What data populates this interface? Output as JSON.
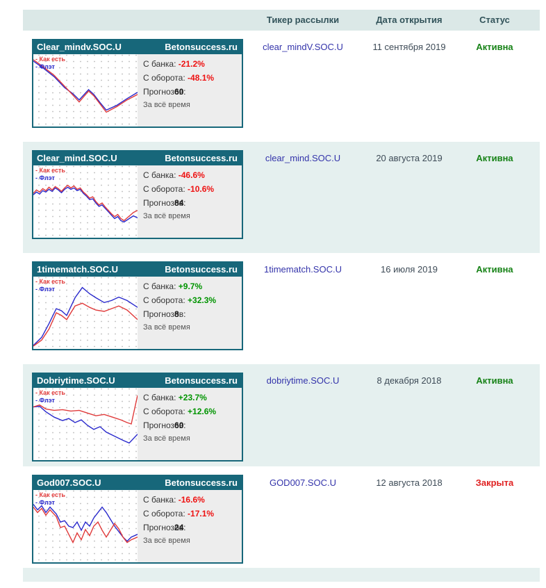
{
  "table_header": {
    "ticker_label": "Тикер рассылки",
    "date_label": "Дата открытия",
    "status_label": "Статус"
  },
  "card_labels": {
    "brand": "Betonsuccess.ru",
    "bank_label": "С банка:",
    "turnover_label": "С оборота:",
    "forecast_prefix": "Прогноз",
    "forecast_suffix": "ов:",
    "alltime_label": "За всё время",
    "legend_asis": "- Как есть",
    "legend_flat": "- Флэт"
  },
  "colors": {
    "card_teal": "#17677a",
    "header_band_bg": "#dbe8e7",
    "alt_row_bg": "#e5f0ef",
    "stats_bg": "#ededed",
    "negative_value": "#ee1111",
    "positive_value": "#009400",
    "ticker_link": "#3333aa",
    "date_text": "#3d4a56",
    "status_active": "#168216",
    "status_closed": "#e02222",
    "line_asis": "#e03a3a",
    "line_flat": "#2929cc"
  },
  "rows": [
    {
      "card_title": "Clear_mindv.SOC.U",
      "bank_value": "-21.2%",
      "bank_sign": "neg",
      "turnover_value": "-48.1%",
      "turnover_sign": "neg",
      "forecast_count": "60",
      "ticker": "clear_mindV.SOC.U",
      "date": "11 сентября 2019",
      "status": "Активна",
      "status_kind": "active",
      "alt": false,
      "chart": {
        "asis": [
          [
            0,
            5
          ],
          [
            10,
            16
          ],
          [
            20,
            28
          ],
          [
            30,
            44
          ],
          [
            38,
            57
          ],
          [
            44,
            67
          ],
          [
            53,
            51
          ],
          [
            58,
            58
          ],
          [
            64,
            70
          ],
          [
            70,
            82
          ],
          [
            80,
            74
          ],
          [
            90,
            64
          ],
          [
            100,
            56
          ]
        ],
        "flat": [
          [
            0,
            7
          ],
          [
            10,
            18
          ],
          [
            20,
            30
          ],
          [
            30,
            46
          ],
          [
            38,
            55
          ],
          [
            44,
            64
          ],
          [
            53,
            49
          ],
          [
            58,
            56
          ],
          [
            64,
            68
          ],
          [
            70,
            79
          ],
          [
            80,
            72
          ],
          [
            90,
            62
          ],
          [
            100,
            53
          ]
        ]
      }
    },
    {
      "card_title": "Clear_mind.SOC.U",
      "bank_value": "-46.6%",
      "bank_sign": "neg",
      "turnover_value": "-10.6%",
      "turnover_sign": "neg",
      "forecast_count": "84",
      "ticker": "clear_mind.SOC.U",
      "date": "20 августа 2019",
      "status": "Активна",
      "status_kind": "active",
      "alt": true,
      "chart": {
        "asis": [
          [
            0,
            38
          ],
          [
            3,
            33
          ],
          [
            6,
            36
          ],
          [
            9,
            31
          ],
          [
            12,
            34
          ],
          [
            15,
            29
          ],
          [
            18,
            33
          ],
          [
            21,
            28
          ],
          [
            24,
            31
          ],
          [
            27,
            35
          ],
          [
            30,
            30
          ],
          [
            33,
            26
          ],
          [
            36,
            30
          ],
          [
            39,
            27
          ],
          [
            42,
            32
          ],
          [
            45,
            30
          ],
          [
            48,
            36
          ],
          [
            51,
            40
          ],
          [
            54,
            45
          ],
          [
            57,
            43
          ],
          [
            60,
            50
          ],
          [
            63,
            55
          ],
          [
            66,
            52
          ],
          [
            69,
            58
          ],
          [
            72,
            63
          ],
          [
            75,
            68
          ],
          [
            78,
            72
          ],
          [
            81,
            69
          ],
          [
            84,
            75
          ],
          [
            87,
            78
          ],
          [
            90,
            74
          ],
          [
            93,
            70
          ],
          [
            96,
            66
          ],
          [
            100,
            63
          ]
        ],
        "flat": [
          [
            0,
            40
          ],
          [
            3,
            36
          ],
          [
            6,
            39
          ],
          [
            9,
            34
          ],
          [
            12,
            36
          ],
          [
            15,
            32
          ],
          [
            18,
            35
          ],
          [
            21,
            30
          ],
          [
            24,
            33
          ],
          [
            27,
            37
          ],
          [
            30,
            32
          ],
          [
            33,
            29
          ],
          [
            36,
            32
          ],
          [
            39,
            30
          ],
          [
            42,
            34
          ],
          [
            45,
            32
          ],
          [
            48,
            38
          ],
          [
            51,
            42
          ],
          [
            54,
            47
          ],
          [
            57,
            46
          ],
          [
            60,
            52
          ],
          [
            63,
            57
          ],
          [
            66,
            55
          ],
          [
            69,
            60
          ],
          [
            72,
            65
          ],
          [
            75,
            70
          ],
          [
            78,
            75
          ],
          [
            81,
            72
          ],
          [
            84,
            78
          ],
          [
            87,
            80
          ],
          [
            90,
            77
          ],
          [
            93,
            74
          ],
          [
            96,
            71
          ],
          [
            100,
            74
          ]
        ]
      }
    },
    {
      "card_title": "1timematch.SOC.U",
      "bank_value": "+9.7%",
      "bank_sign": "pos",
      "turnover_value": "+32.3%",
      "turnover_sign": "pos",
      "forecast_count": "8",
      "ticker": "1timematch.SOC.U",
      "date": "16 июля 2019",
      "status": "Активна",
      "status_kind": "active",
      "alt": false,
      "chart": {
        "asis": [
          [
            0,
            99
          ],
          [
            8,
            90
          ],
          [
            15,
            74
          ],
          [
            22,
            50
          ],
          [
            27,
            54
          ],
          [
            32,
            60
          ],
          [
            40,
            40
          ],
          [
            47,
            36
          ],
          [
            54,
            42
          ],
          [
            60,
            46
          ],
          [
            68,
            48
          ],
          [
            75,
            44
          ],
          [
            82,
            40
          ],
          [
            90,
            46
          ],
          [
            100,
            60
          ]
        ],
        "flat": [
          [
            0,
            98
          ],
          [
            8,
            86
          ],
          [
            15,
            66
          ],
          [
            22,
            44
          ],
          [
            27,
            47
          ],
          [
            32,
            54
          ],
          [
            40,
            28
          ],
          [
            47,
            13
          ],
          [
            54,
            22
          ],
          [
            60,
            28
          ],
          [
            68,
            35
          ],
          [
            75,
            32
          ],
          [
            82,
            27
          ],
          [
            90,
            32
          ],
          [
            100,
            42
          ]
        ]
      }
    },
    {
      "card_title": "Dobriytime.SOC.U",
      "bank_value": "+23.7%",
      "bank_sign": "pos",
      "turnover_value": "+12.6%",
      "turnover_sign": "pos",
      "forecast_count": "60",
      "ticker": "dobriytime.SOC.U",
      "date": "8 декабря 2018",
      "status": "Активна",
      "status_kind": "active",
      "alt": true,
      "chart": {
        "asis": [
          [
            0,
            25
          ],
          [
            6,
            22
          ],
          [
            12,
            28
          ],
          [
            20,
            30
          ],
          [
            28,
            29
          ],
          [
            36,
            31
          ],
          [
            44,
            30
          ],
          [
            52,
            34
          ],
          [
            60,
            38
          ],
          [
            68,
            36
          ],
          [
            76,
            40
          ],
          [
            84,
            44
          ],
          [
            90,
            48
          ],
          [
            94,
            50
          ],
          [
            100,
            8
          ]
        ],
        "flat": [
          [
            0,
            25
          ],
          [
            6,
            24
          ],
          [
            12,
            32
          ],
          [
            20,
            40
          ],
          [
            28,
            45
          ],
          [
            34,
            42
          ],
          [
            40,
            48
          ],
          [
            46,
            44
          ],
          [
            52,
            52
          ],
          [
            58,
            58
          ],
          [
            64,
            54
          ],
          [
            70,
            62
          ],
          [
            78,
            68
          ],
          [
            86,
            74
          ],
          [
            92,
            78
          ],
          [
            100,
            65
          ]
        ]
      }
    },
    {
      "card_title": "God007.SOC.U",
      "bank_value": "-16.6%",
      "bank_sign": "neg",
      "turnover_value": "-17.1%",
      "turnover_sign": "neg",
      "forecast_count": "24",
      "ticker": "GOD007.SOC.U",
      "date": "12 августа 2018",
      "status": "Закрыта",
      "status_kind": "closed",
      "alt": false,
      "chart": {
        "asis": [
          [
            0,
            22
          ],
          [
            4,
            30
          ],
          [
            8,
            24
          ],
          [
            12,
            34
          ],
          [
            16,
            26
          ],
          [
            22,
            36
          ],
          [
            26,
            52
          ],
          [
            30,
            50
          ],
          [
            34,
            62
          ],
          [
            38,
            74
          ],
          [
            42,
            60
          ],
          [
            46,
            70
          ],
          [
            50,
            55
          ],
          [
            54,
            64
          ],
          [
            58,
            50
          ],
          [
            62,
            44
          ],
          [
            66,
            56
          ],
          [
            70,
            66
          ],
          [
            74,
            56
          ],
          [
            78,
            46
          ],
          [
            82,
            54
          ],
          [
            86,
            66
          ],
          [
            90,
            74
          ],
          [
            94,
            70
          ],
          [
            100,
            66
          ]
        ],
        "flat": [
          [
            0,
            18
          ],
          [
            4,
            26
          ],
          [
            8,
            20
          ],
          [
            12,
            30
          ],
          [
            16,
            22
          ],
          [
            22,
            32
          ],
          [
            26,
            44
          ],
          [
            30,
            42
          ],
          [
            34,
            50
          ],
          [
            38,
            52
          ],
          [
            42,
            44
          ],
          [
            46,
            56
          ],
          [
            50,
            44
          ],
          [
            54,
            50
          ],
          [
            58,
            38
          ],
          [
            62,
            30
          ],
          [
            66,
            22
          ],
          [
            70,
            30
          ],
          [
            74,
            40
          ],
          [
            78,
            50
          ],
          [
            82,
            58
          ],
          [
            86,
            66
          ],
          [
            90,
            72
          ],
          [
            94,
            66
          ],
          [
            100,
            62
          ]
        ]
      }
    }
  ]
}
